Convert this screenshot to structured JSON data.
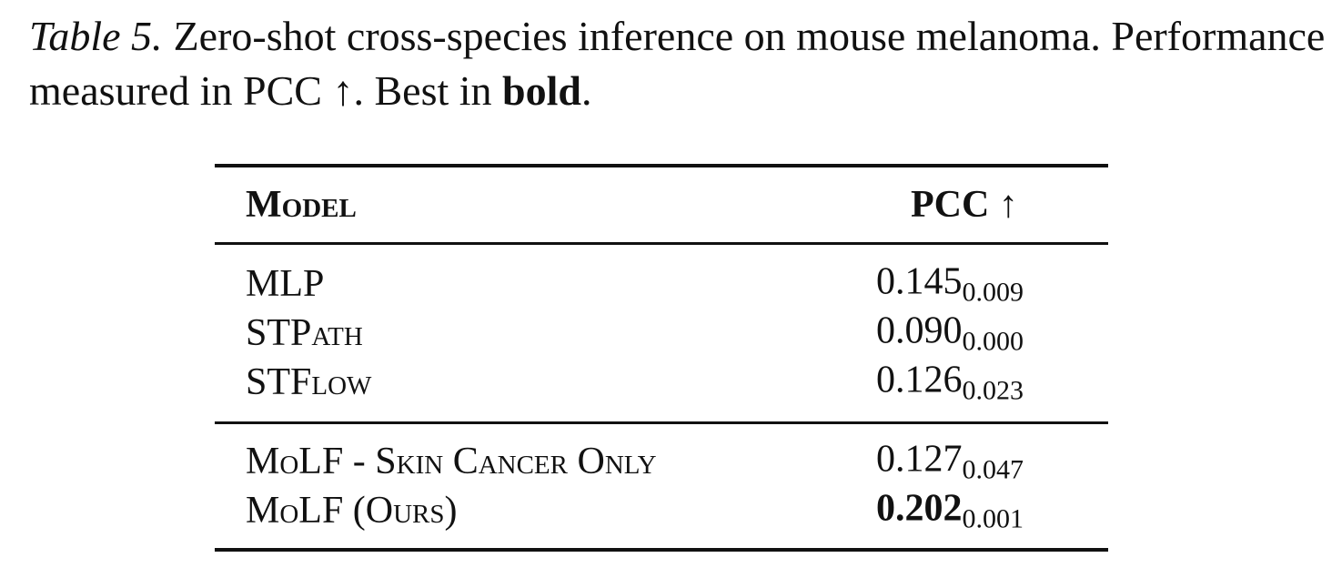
{
  "caption": {
    "label": "Table 5.",
    "parts": [
      {
        "text": "Zero-shot cross-species inference on mouse melanoma. Performance measured in PCC ↑. Best in ",
        "bold": false
      },
      {
        "text": "bold",
        "bold": true
      },
      {
        "text": ".",
        "bold": false
      }
    ]
  },
  "table": {
    "header": [
      "Model",
      "PCC ↑"
    ],
    "groups": [
      {
        "rows": [
          {
            "model": "MLP",
            "pcc": "0.145",
            "std": "0.009",
            "best": false
          },
          {
            "model": "STPath",
            "pcc": "0.090",
            "std": "0.000",
            "best": false
          },
          {
            "model": "STFlow",
            "pcc": "0.126",
            "std": "0.023",
            "best": false
          }
        ]
      },
      {
        "rows": [
          {
            "model": "MoLF - Skin Cancer Only",
            "pcc": "0.127",
            "std": "0.047",
            "best": false
          },
          {
            "model": "MoLF (Ours)",
            "pcc": "0.202",
            "std": "0.001",
            "best": true
          }
        ]
      }
    ]
  }
}
